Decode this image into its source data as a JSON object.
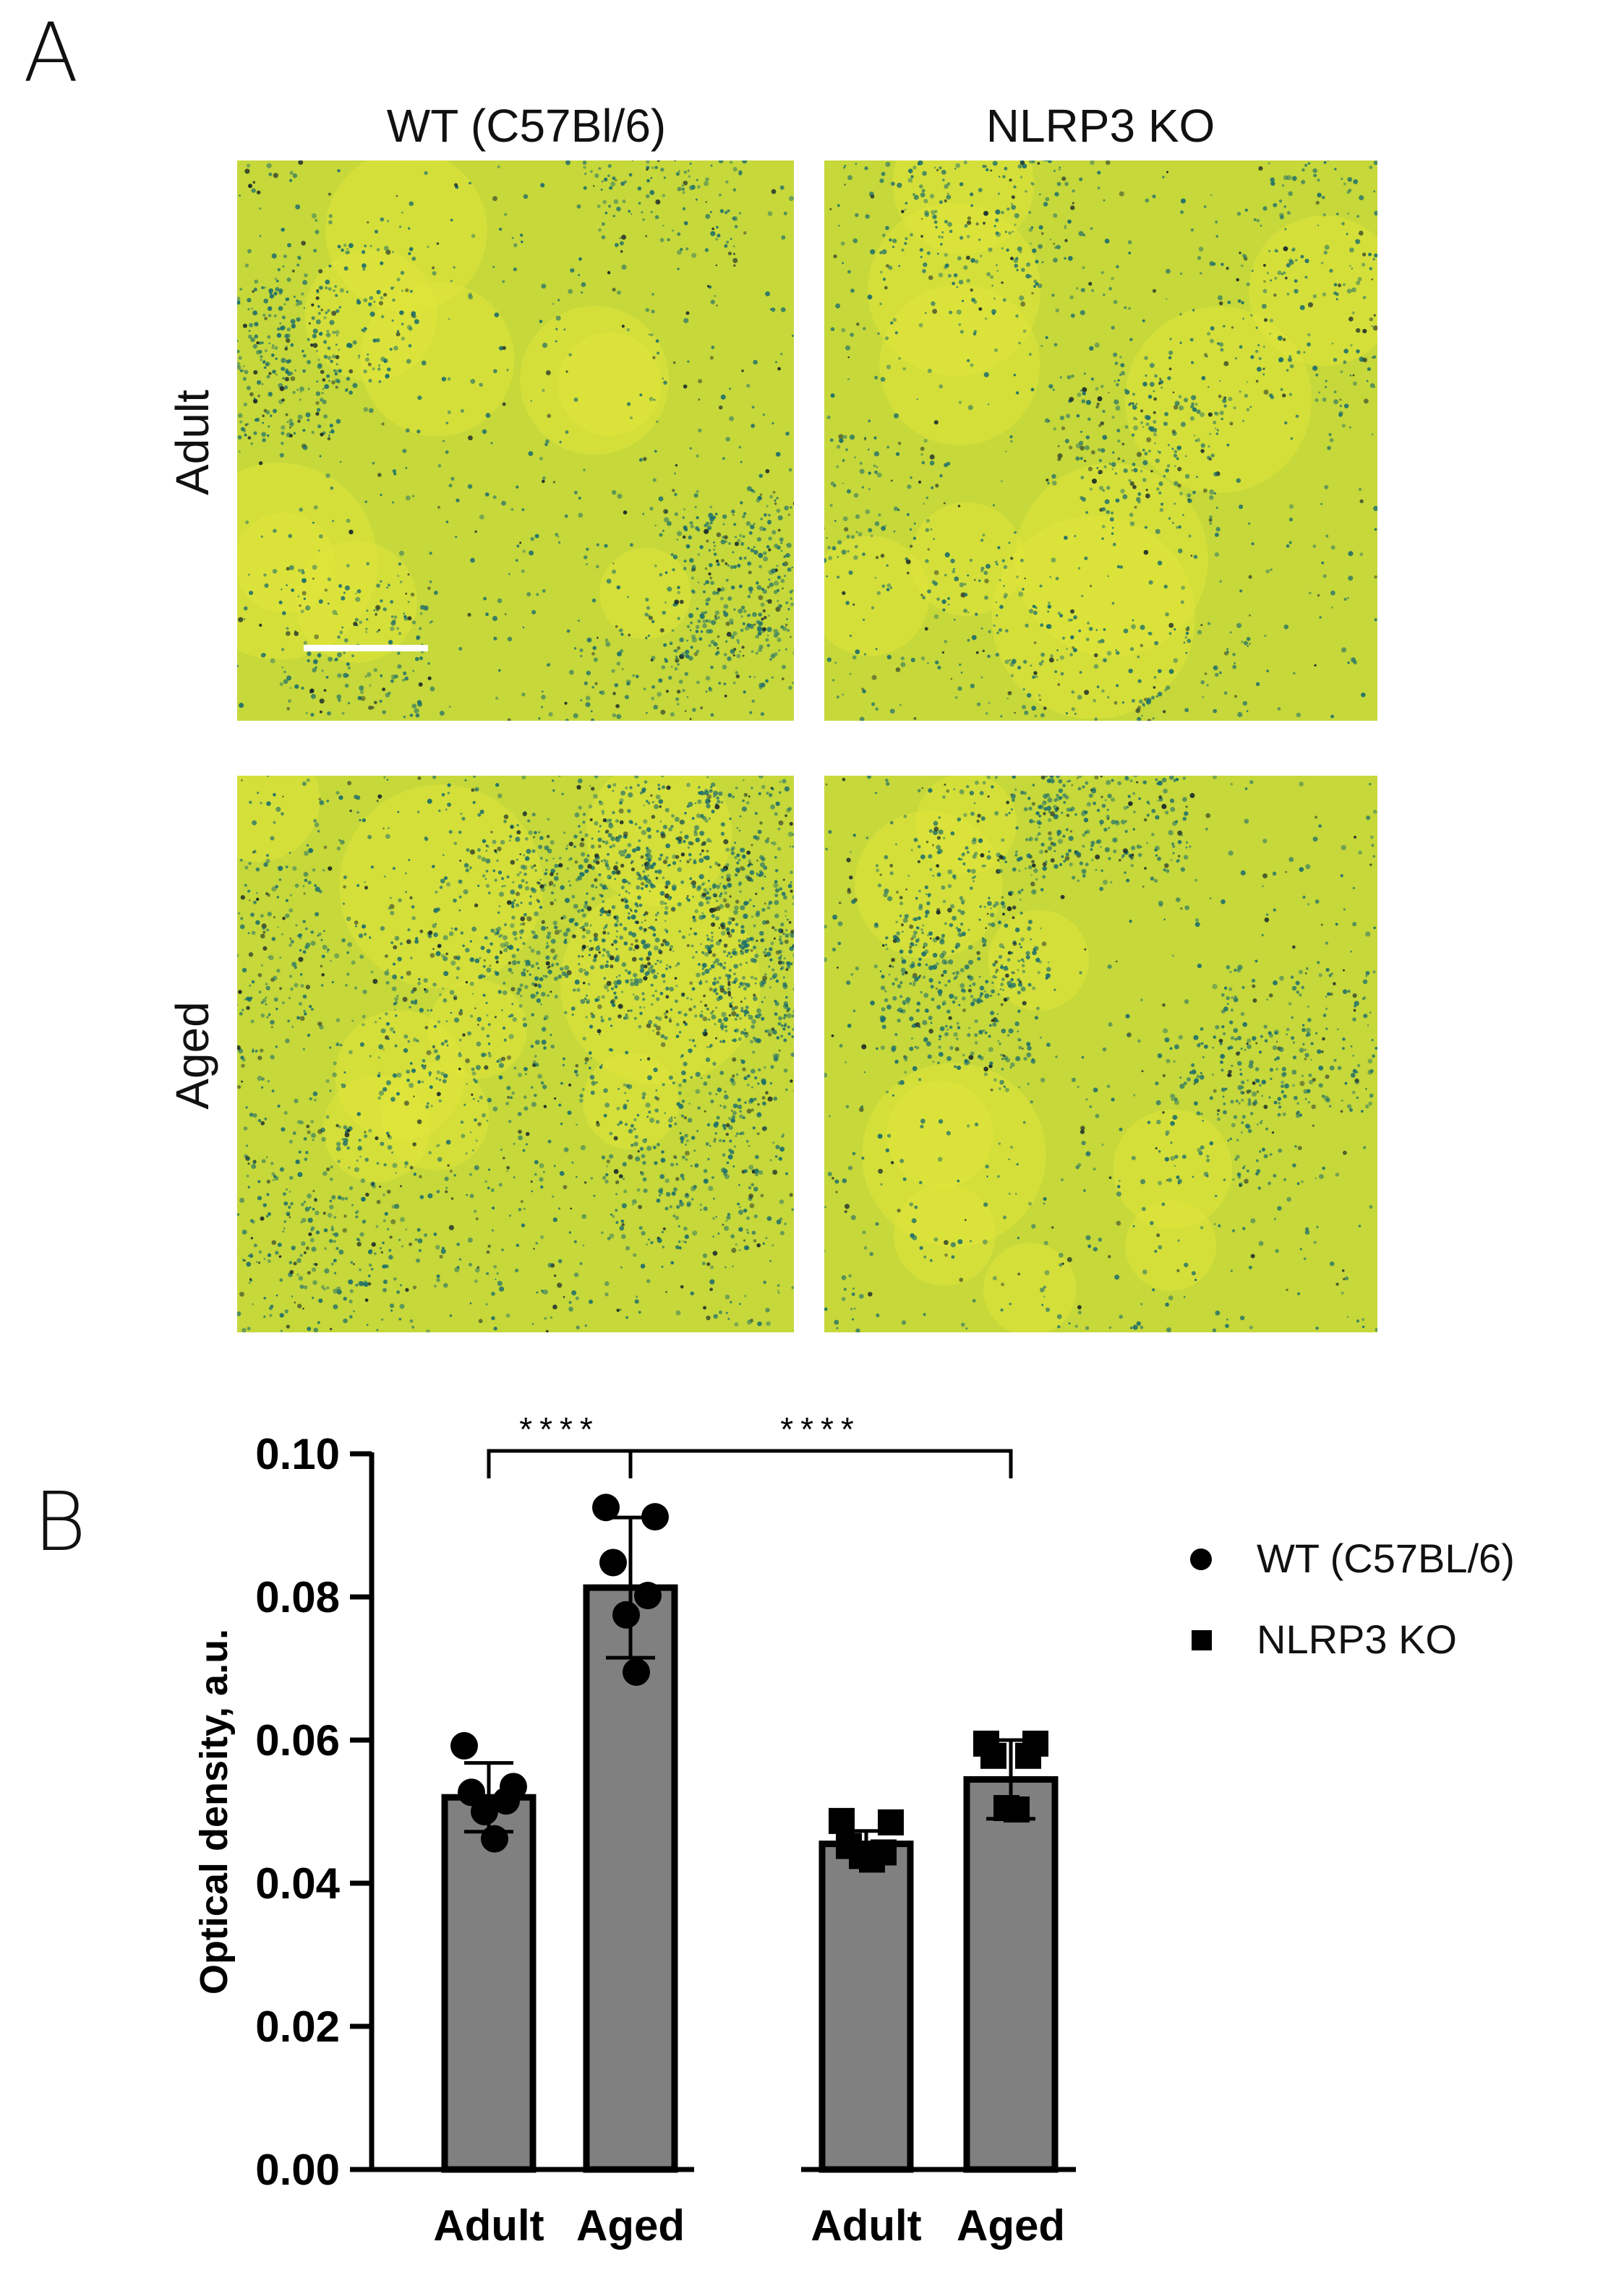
{
  "panels": {
    "a_label": "A",
    "b_label": "B"
  },
  "micrographs": {
    "columns": [
      "WT (C57Bl/6)",
      "NLRP3 KO"
    ],
    "rows": [
      "Adult",
      "Aged"
    ],
    "stain_colors": {
      "background": "#cfdc2a",
      "stain": "#1f6f6a"
    }
  },
  "chart_data": {
    "type": "bar",
    "categories": [
      "Adult",
      "Aged",
      "Adult",
      "Aged"
    ],
    "groups": [
      "WT (C57BL/6)",
      "WT (C57BL/6)",
      "NLRP3 KO",
      "NLRP3 KO"
    ],
    "values": [
      0.052,
      0.0813,
      0.0455,
      0.0545
    ],
    "errors": [
      0.0048,
      0.0098,
      0.0018,
      0.0055
    ],
    "points": [
      [
        0.0592,
        0.0535,
        0.0527,
        0.0515,
        0.05,
        0.0462
      ],
      [
        0.0925,
        0.0912,
        0.0848,
        0.0802,
        0.0775,
        0.0695
      ],
      [
        0.0487,
        0.0485,
        0.0452,
        0.0443,
        0.0438,
        0.0433
      ],
      [
        0.0595,
        0.0595,
        0.0578,
        0.0578,
        0.0505,
        0.0503
      ]
    ],
    "markers": [
      "circle",
      "circle",
      "square",
      "square"
    ],
    "ylabel": "Optical density, a.u.",
    "ylim": [
      0,
      0.1
    ],
    "yticks": [
      "0.00",
      "0.02",
      "0.04",
      "0.06",
      "0.08",
      "0.10"
    ],
    "significance": [
      {
        "from": 0,
        "to": 1,
        "label": "****"
      },
      {
        "from": 1,
        "to": 3,
        "label": "****"
      }
    ],
    "legend": [
      {
        "label": "WT (C57BL/6)",
        "marker": "circle"
      },
      {
        "label": "NLRP3 KO",
        "marker": "square"
      }
    ],
    "legend_position": "right",
    "bar_color": "#808080"
  }
}
